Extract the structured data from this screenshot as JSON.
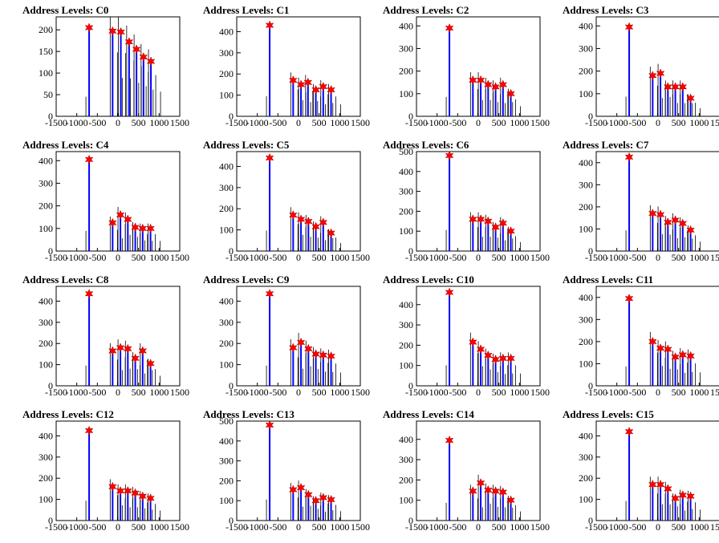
{
  "title_prefix": "Address Levels: ",
  "colors": {
    "line": "#0000ff",
    "marker": "#ff0000",
    "axis": "#000000"
  },
  "x_ticks": [
    "-1500",
    "-1000",
    "-500",
    "0",
    "500",
    "1000",
    "1500"
  ],
  "xlim": [
    -1500,
    1500
  ],
  "chart_data": [
    {
      "type": "bar",
      "title": "Address Levels: C0",
      "ylim": [
        0,
        230
      ],
      "yticks": [
        0,
        50,
        100,
        150,
        200
      ],
      "peaks": [
        [
          -700,
          205
        ],
        [
          -130,
          197
        ],
        [
          70,
          195
        ],
        [
          270,
          172
        ],
        [
          450,
          155
        ],
        [
          620,
          137
        ],
        [
          800,
          127
        ]
      ]
    },
    {
      "type": "bar",
      "title": "Address Levels: C1",
      "ylim": [
        0,
        470
      ],
      "yticks": [
        0,
        100,
        200,
        300,
        400
      ],
      "peaks": [
        [
          -700,
          430
        ],
        [
          -130,
          170
        ],
        [
          60,
          150
        ],
        [
          230,
          160
        ],
        [
          420,
          125
        ],
        [
          600,
          140
        ],
        [
          790,
          125
        ]
      ]
    },
    {
      "type": "bar",
      "title": "Address Levels: C2",
      "ylim": [
        0,
        440
      ],
      "yticks": [
        0,
        100,
        200,
        300,
        400
      ],
      "peaks": [
        [
          -700,
          390
        ],
        [
          -130,
          160
        ],
        [
          60,
          160
        ],
        [
          240,
          140
        ],
        [
          420,
          130
        ],
        [
          600,
          140
        ],
        [
          790,
          100
        ]
      ]
    },
    {
      "type": "bar",
      "title": "Address Levels: C3",
      "ylim": [
        0,
        440
      ],
      "yticks": [
        0,
        100,
        200,
        300,
        400
      ],
      "peaks": [
        [
          -700,
          395
        ],
        [
          -130,
          180
        ],
        [
          60,
          190
        ],
        [
          240,
          130
        ],
        [
          420,
          130
        ],
        [
          600,
          130
        ],
        [
          790,
          80
        ]
      ]
    },
    {
      "type": "bar",
      "title": "Address Levels: C4",
      "ylim": [
        0,
        440
      ],
      "yticks": [
        0,
        100,
        200,
        300,
        400
      ],
      "peaks": [
        [
          -700,
          405
        ],
        [
          -130,
          125
        ],
        [
          60,
          160
        ],
        [
          240,
          140
        ],
        [
          420,
          105
        ],
        [
          600,
          100
        ],
        [
          790,
          100
        ]
      ]
    },
    {
      "type": "bar",
      "title": "Address Levels: C5",
      "ylim": [
        0,
        470
      ],
      "yticks": [
        0,
        100,
        200,
        300,
        400
      ],
      "peaks": [
        [
          -700,
          440
        ],
        [
          -130,
          170
        ],
        [
          60,
          150
        ],
        [
          240,
          140
        ],
        [
          420,
          115
        ],
        [
          600,
          135
        ],
        [
          790,
          85
        ]
      ]
    },
    {
      "type": "bar",
      "title": "Address Levels: C6",
      "ylim": [
        0,
        500
      ],
      "yticks": [
        0,
        100,
        200,
        300,
        400,
        500
      ],
      "peaks": [
        [
          -700,
          480
        ],
        [
          -130,
          160
        ],
        [
          60,
          160
        ],
        [
          240,
          150
        ],
        [
          420,
          120
        ],
        [
          600,
          140
        ],
        [
          790,
          100
        ]
      ]
    },
    {
      "type": "bar",
      "title": "Address Levels: C7",
      "ylim": [
        0,
        450
      ],
      "yticks": [
        0,
        100,
        200,
        300,
        400
      ],
      "peaks": [
        [
          -700,
          425
        ],
        [
          -130,
          170
        ],
        [
          60,
          165
        ],
        [
          240,
          130
        ],
        [
          420,
          140
        ],
        [
          600,
          125
        ],
        [
          790,
          95
        ]
      ]
    },
    {
      "type": "bar",
      "title": "Address Levels: C8",
      "ylim": [
        0,
        470
      ],
      "yticks": [
        0,
        100,
        200,
        300,
        400
      ],
      "peaks": [
        [
          -700,
          435
        ],
        [
          -130,
          165
        ],
        [
          60,
          180
        ],
        [
          240,
          175
        ],
        [
          420,
          130
        ],
        [
          600,
          165
        ],
        [
          790,
          105
        ]
      ]
    },
    {
      "type": "bar",
      "title": "Address Levels: C9",
      "ylim": [
        0,
        470
      ],
      "yticks": [
        0,
        100,
        200,
        300,
        400
      ],
      "peaks": [
        [
          -700,
          435
        ],
        [
          -130,
          180
        ],
        [
          60,
          205
        ],
        [
          240,
          175
        ],
        [
          420,
          150
        ],
        [
          600,
          145
        ],
        [
          790,
          140
        ]
      ]
    },
    {
      "type": "bar",
      "title": "Address Levels: C10",
      "ylim": [
        0,
        490
      ],
      "yticks": [
        0,
        100,
        200,
        300,
        400
      ],
      "peaks": [
        [
          -700,
          460
        ],
        [
          -130,
          215
        ],
        [
          60,
          180
        ],
        [
          240,
          150
        ],
        [
          420,
          130
        ],
        [
          600,
          135
        ],
        [
          790,
          135
        ]
      ]
    },
    {
      "type": "bar",
      "title": "Address Levels: C11",
      "ylim": [
        0,
        450
      ],
      "yticks": [
        0,
        100,
        200,
        300,
        400
      ],
      "peaks": [
        [
          -700,
          395
        ],
        [
          -130,
          200
        ],
        [
          60,
          170
        ],
        [
          240,
          165
        ],
        [
          420,
          130
        ],
        [
          600,
          140
        ],
        [
          790,
          135
        ]
      ]
    },
    {
      "type": "bar",
      "title": "Address Levels: C12",
      "ylim": [
        0,
        470
      ],
      "yticks": [
        0,
        100,
        200,
        300,
        400
      ],
      "peaks": [
        [
          -700,
          425
        ],
        [
          -130,
          160
        ],
        [
          60,
          140
        ],
        [
          240,
          140
        ],
        [
          420,
          130
        ],
        [
          600,
          115
        ],
        [
          790,
          105
        ]
      ]
    },
    {
      "type": "bar",
      "title": "Address Levels: C13",
      "ylim": [
        0,
        500
      ],
      "yticks": [
        0,
        100,
        200,
        300,
        400,
        500
      ],
      "peaks": [
        [
          -700,
          480
        ],
        [
          -130,
          155
        ],
        [
          60,
          165
        ],
        [
          240,
          130
        ],
        [
          420,
          100
        ],
        [
          600,
          115
        ],
        [
          790,
          105
        ]
      ]
    },
    {
      "type": "bar",
      "title": "Address Levels: C14",
      "ylim": [
        0,
        490
      ],
      "yticks": [
        0,
        100,
        200,
        300,
        400
      ],
      "peaks": [
        [
          -700,
          395
        ],
        [
          -130,
          145
        ],
        [
          60,
          185
        ],
        [
          240,
          150
        ],
        [
          420,
          145
        ],
        [
          600,
          140
        ],
        [
          790,
          100
        ]
      ]
    },
    {
      "type": "bar",
      "title": "Address Levels: C15",
      "ylim": [
        0,
        470
      ],
      "yticks": [
        0,
        100,
        200,
        300,
        400
      ],
      "peaks": [
        [
          -700,
          420
        ],
        [
          -130,
          170
        ],
        [
          60,
          170
        ],
        [
          240,
          150
        ],
        [
          420,
          105
        ],
        [
          600,
          120
        ],
        [
          790,
          115
        ]
      ]
    }
  ]
}
